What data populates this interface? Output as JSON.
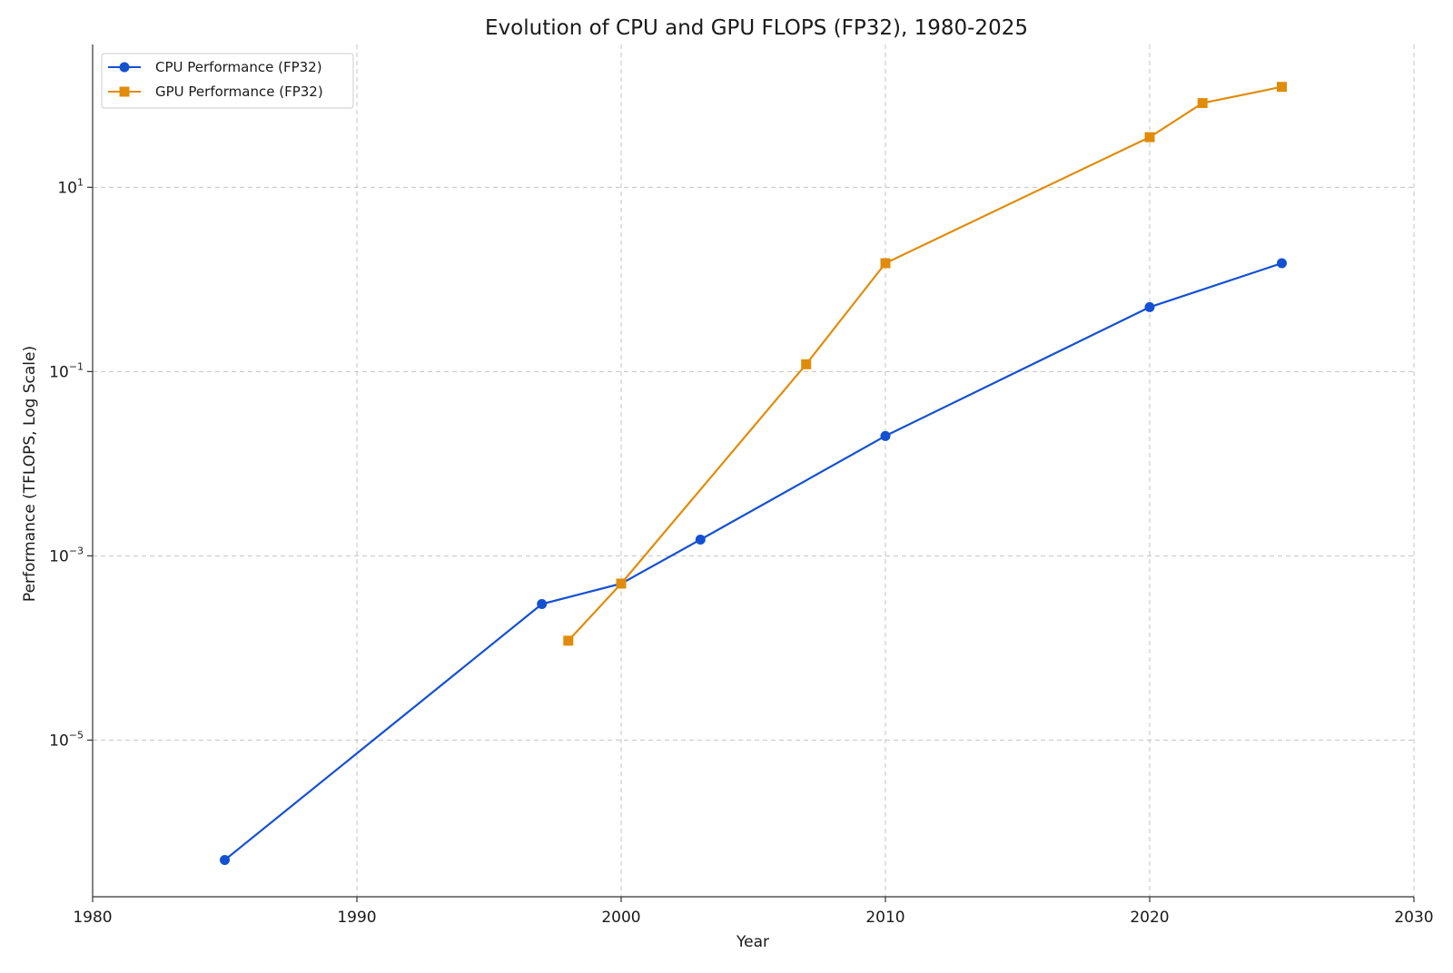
{
  "chart_data": {
    "type": "line",
    "title": "Evolution of CPU and GPU FLOPS (FP32), 1980-2025",
    "xlabel": "Year",
    "ylabel": "Performance (TFLOPS, Log Scale)",
    "xlim": [
      1980,
      2030
    ],
    "ylim_log10": [
      -6.7,
      2.55
    ],
    "y_scale": "log",
    "grid": true,
    "legend_position": "top-left",
    "x_ticks": [
      {
        "value": 1980,
        "label": "1980"
      },
      {
        "value": 1990,
        "label": "1990"
      },
      {
        "value": 2000,
        "label": "2000"
      },
      {
        "value": 2010,
        "label": "2010"
      },
      {
        "value": 2020,
        "label": "2020"
      },
      {
        "value": 2030,
        "label": "2030"
      }
    ],
    "y_ticks": [
      {
        "value": 10,
        "base": "10",
        "exponent": "1"
      },
      {
        "value": 0.1,
        "base": "10",
        "exponent": "−1"
      },
      {
        "value": 0.001,
        "base": "10",
        "exponent": "−3"
      },
      {
        "value": 1e-05,
        "base": "10",
        "exponent": "−5"
      }
    ],
    "series": [
      {
        "name": "CPU Performance (FP32)",
        "color": "#1450d2",
        "marker": "circle",
        "points": [
          {
            "x": 1985,
            "y": 5e-07
          },
          {
            "x": 1997,
            "y": 0.0003
          },
          {
            "x": 2000,
            "y": 0.0005
          },
          {
            "x": 2003,
            "y": 0.0015
          },
          {
            "x": 2010,
            "y": 0.02
          },
          {
            "x": 2020,
            "y": 0.5
          },
          {
            "x": 2025,
            "y": 1.5
          }
        ]
      },
      {
        "name": "GPU Performance (FP32)",
        "color": "#e08c0a",
        "marker": "square",
        "points": [
          {
            "x": 1998,
            "y": 0.00012
          },
          {
            "x": 2000,
            "y": 0.0005
          },
          {
            "x": 2007,
            "y": 0.12
          },
          {
            "x": 2010,
            "y": 1.5
          },
          {
            "x": 2020,
            "y": 35
          },
          {
            "x": 2022,
            "y": 82
          },
          {
            "x": 2025,
            "y": 123
          }
        ]
      }
    ]
  }
}
